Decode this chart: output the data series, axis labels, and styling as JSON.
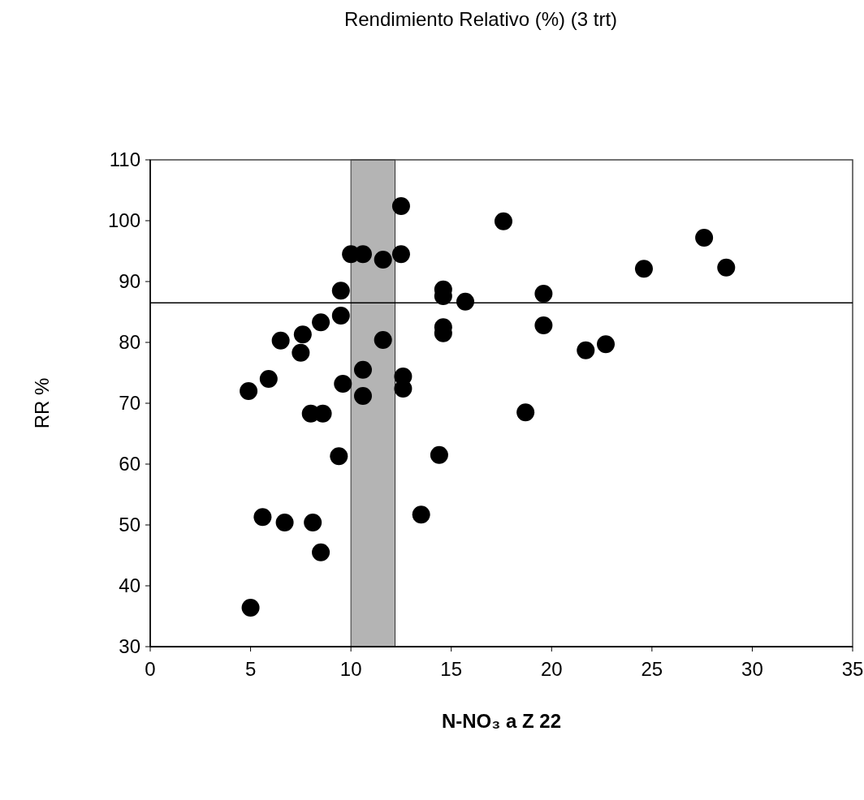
{
  "chart_data": {
    "type": "scatter",
    "title": "Rendimiento Relativo (%)  (3 trt)",
    "xlabel": "N-NO₃ a Z 22",
    "ylabel": "RR %",
    "x": [
      4.9,
      5.0,
      5.9,
      5.6,
      6.5,
      6.7,
      7.6,
      7.5,
      8.0,
      8.6,
      8.5,
      8.1,
      8.5,
      9.5,
      9.5,
      9.6,
      9.4,
      10.0,
      10.6,
      11.6,
      11.6,
      10.6,
      10.6,
      12.5,
      12.5,
      12.6,
      12.6,
      13.5,
      14.4,
      14.6,
      14.6,
      14.6,
      14.6,
      15.7,
      17.6,
      18.7,
      19.6,
      19.6,
      21.7,
      22.7,
      24.6,
      27.6,
      28.7
    ],
    "series": [
      {
        "color": "#000000",
        "values": [
          72.0,
          36.4,
          74.0,
          51.3,
          80.3,
          50.4,
          81.3,
          78.3,
          68.3,
          68.3,
          83.3,
          50.4,
          45.5,
          88.5,
          84.4,
          73.2,
          61.3,
          94.5,
          94.5,
          93.6,
          80.4,
          75.5,
          71.2,
          102.4,
          94.5,
          74.4,
          72.4,
          51.7,
          61.5,
          88.7,
          87.6,
          82.5,
          81.5,
          86.7,
          99.9,
          68.5,
          88.0,
          82.8,
          78.7,
          79.7,
          92.1,
          97.2,
          92.3
        ]
      }
    ],
    "xlim": [
      0,
      35
    ],
    "ylim": [
      30,
      110
    ],
    "xticks": [
      0,
      5,
      10,
      15,
      20,
      25,
      30,
      35
    ],
    "yticks": [
      30,
      40,
      50,
      60,
      70,
      80,
      90,
      100,
      110
    ],
    "ref_lines": [
      {
        "axis": "y",
        "value": 86.5,
        "color": "#000000"
      }
    ],
    "bands": [
      {
        "axis": "x",
        "from": 10.0,
        "to": 12.2,
        "color": "#b4b4b4"
      }
    ],
    "marker": "circle"
  }
}
